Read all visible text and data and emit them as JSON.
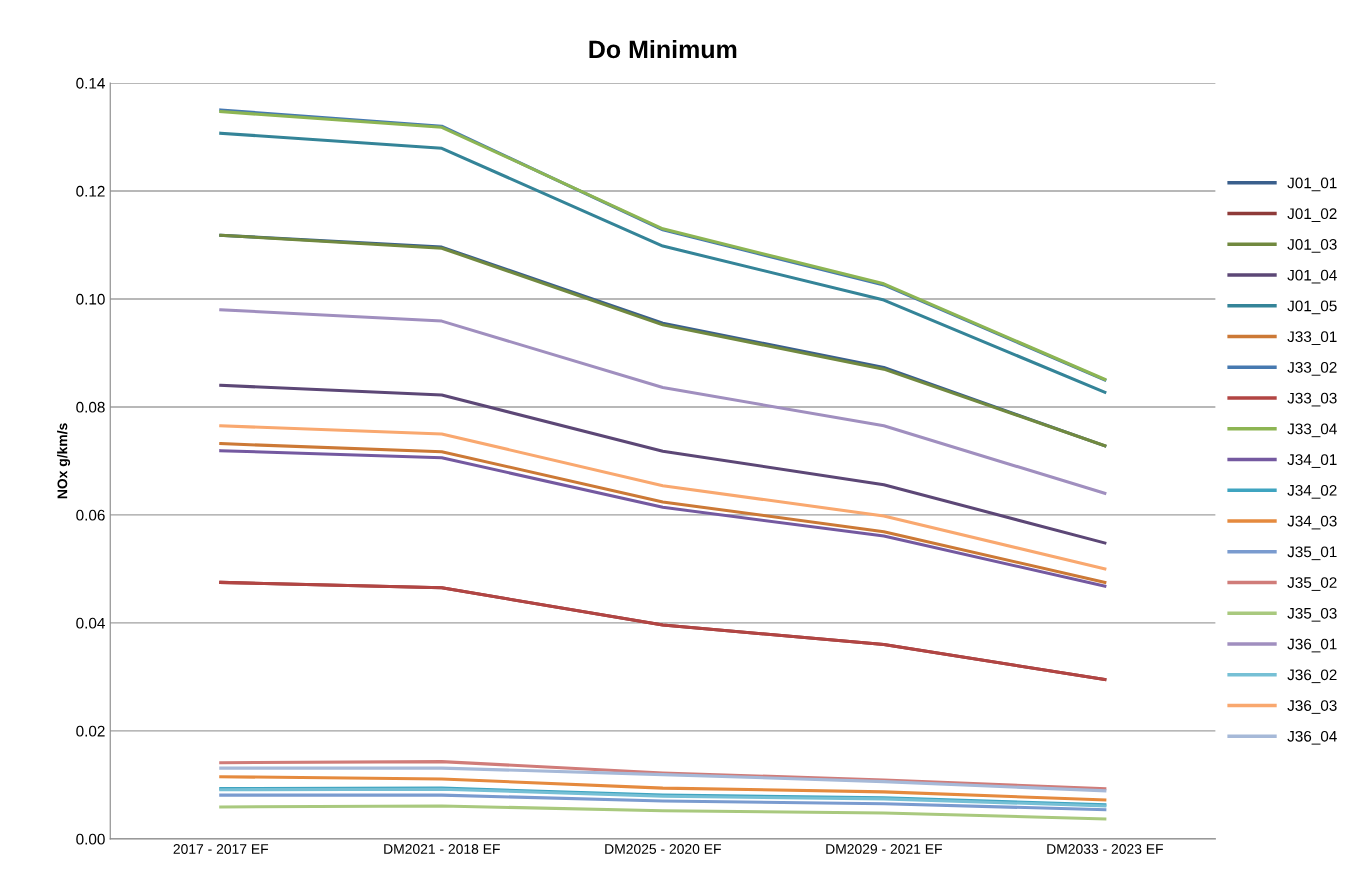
{
  "chart_data": {
    "type": "line",
    "title": "Do Minimum",
    "ylabel": "NOx g/km/s",
    "categories": [
      "2017 - 2017 EF",
      "DM2021 - 2018 EF",
      "DM2025 - 2020 EF",
      "DM2029 - 2021 EF",
      "DM2033 - 2023 EF"
    ],
    "ylim": [
      0,
      0.14
    ],
    "yticks": [
      {
        "value": 0,
        "label": "0.00"
      },
      {
        "value": 0.02,
        "label": "0.02"
      },
      {
        "value": 0.04,
        "label": "0.04"
      },
      {
        "value": 0.06,
        "label": "0.06"
      },
      {
        "value": 0.08,
        "label": "0.08"
      },
      {
        "value": 0.1,
        "label": "0.10"
      },
      {
        "value": 0.12,
        "label": "0.12"
      },
      {
        "value": 0.14,
        "label": "0.14"
      }
    ],
    "grid": "y",
    "legend": "right",
    "marker": "none",
    "line_style": "solid",
    "series": [
      {
        "name": "J01_01",
        "color": "#3a5f8c",
        "values": [
          0.1118,
          0.1096,
          0.0955,
          0.0873,
          0.0728
        ]
      },
      {
        "name": "J01_02",
        "color": "#8f3b39",
        "values": [
          0.0475,
          0.0465,
          0.0396,
          0.036,
          0.0295
        ]
      },
      {
        "name": "J01_03",
        "color": "#71893f",
        "values": [
          0.1118,
          0.1094,
          0.0952,
          0.087,
          0.0728
        ]
      },
      {
        "name": "J01_04",
        "color": "#5c4776",
        "values": [
          0.084,
          0.0822,
          0.0718,
          0.0656,
          0.0548
        ]
      },
      {
        "name": "J01_05",
        "color": "#348498",
        "values": [
          0.1307,
          0.1279,
          0.1098,
          0.0998,
          0.0827
        ]
      },
      {
        "name": "J33_01",
        "color": "#cc7936",
        "values": [
          0.0732,
          0.0717,
          0.0624,
          0.0569,
          0.0475
        ]
      },
      {
        "name": "J33_02",
        "color": "#4679b0",
        "values": [
          0.135,
          0.132,
          0.1128,
          0.1026,
          0.085
        ]
      },
      {
        "name": "J33_03",
        "color": "#b24543",
        "values": [
          0.0475,
          0.0465,
          0.0396,
          0.036,
          0.0295
        ]
      },
      {
        "name": "J33_04",
        "color": "#8db553",
        "values": [
          0.1347,
          0.1318,
          0.113,
          0.1028,
          0.0851
        ]
      },
      {
        "name": "J34_01",
        "color": "#7459a0",
        "values": [
          0.0719,
          0.0706,
          0.0614,
          0.0561,
          0.0468
        ]
      },
      {
        "name": "J34_02",
        "color": "#3fa4c0",
        "values": [
          0.0093,
          0.0094,
          0.0081,
          0.0076,
          0.0063
        ]
      },
      {
        "name": "J34_03",
        "color": "#e58a3e",
        "values": [
          0.0115,
          0.0111,
          0.0094,
          0.0087,
          0.0072
        ]
      },
      {
        "name": "J35_01",
        "color": "#7a9bcf",
        "values": [
          0.0081,
          0.0081,
          0.007,
          0.0065,
          0.0054
        ]
      },
      {
        "name": "J35_02",
        "color": "#d07c79",
        "values": [
          0.0141,
          0.0143,
          0.0122,
          0.0109,
          0.0093
        ]
      },
      {
        "name": "J35_03",
        "color": "#a9c97e",
        "values": [
          0.0059,
          0.0061,
          0.0052,
          0.0048,
          0.0037
        ]
      },
      {
        "name": "J36_01",
        "color": "#a08fbf",
        "values": [
          0.098,
          0.0959,
          0.0836,
          0.0765,
          0.064
        ]
      },
      {
        "name": "J36_02",
        "color": "#76c0d5",
        "values": [
          0.0091,
          0.0092,
          0.0079,
          0.0074,
          0.0061
        ]
      },
      {
        "name": "J36_03",
        "color": "#f9a86f",
        "values": [
          0.0765,
          0.075,
          0.0654,
          0.0598,
          0.05
        ]
      },
      {
        "name": "J36_04",
        "color": "#a6b9d8",
        "values": [
          0.0131,
          0.0131,
          0.0119,
          0.0106,
          0.0089
        ]
      }
    ]
  }
}
